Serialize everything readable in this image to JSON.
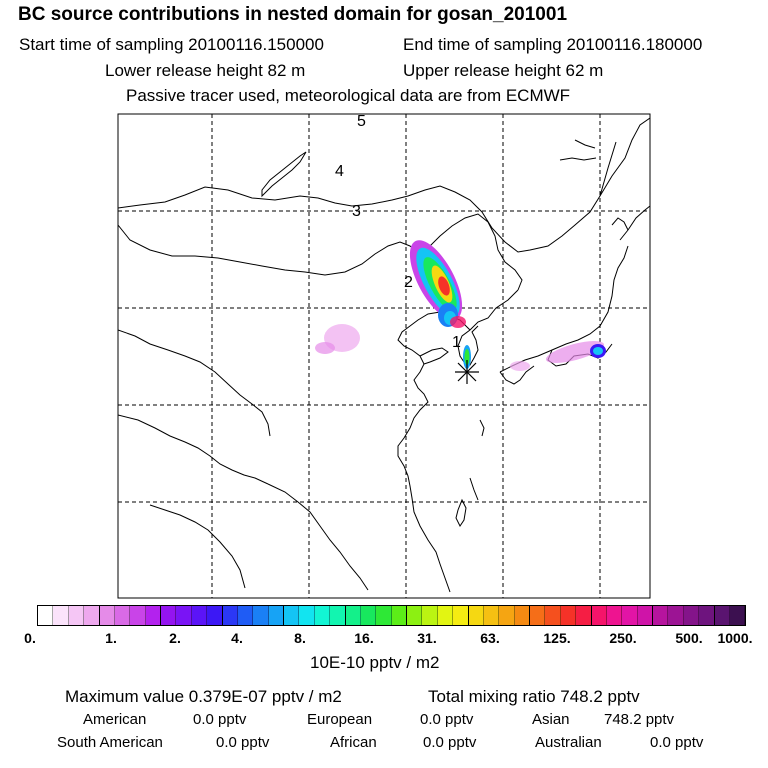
{
  "title": "BC  source contributions in nested domain for gosan_201001",
  "header": {
    "start_label": "Start time of sampling 20100116.150000",
    "end_label": "End time of sampling 20100116.180000",
    "lower_label": "Lower release height   82 m",
    "upper_label": "Upper release height   62 m",
    "info_line": "Passive tracer used, meteorological data are from ECMWF"
  },
  "map": {
    "day_markers": [
      "1",
      "2",
      "3",
      "4",
      "5"
    ],
    "receptor": "gosan"
  },
  "colorbar": {
    "labels": [
      "0.",
      "1.",
      "2.",
      "4.",
      "8.",
      "16.",
      "31.",
      "63.",
      "125.",
      "250.",
      "500.",
      "1000."
    ],
    "unit": "10E-10 pptv / m2",
    "colors": [
      "#ffffff",
      "#fbe3fb",
      "#f5c6f5",
      "#eea8ee",
      "#e58be8",
      "#d96ae6",
      "#c944e8",
      "#b322ee",
      "#9414f0",
      "#7a14f5",
      "#5b14f7",
      "#3c18f5",
      "#2b38f5",
      "#1f5cf5",
      "#1a80f5",
      "#17a3f5",
      "#14c4f5",
      "#12e4f0",
      "#12f5d4",
      "#12f5b0",
      "#14f08a",
      "#18e85e",
      "#2ee836",
      "#5ced18",
      "#8cf012",
      "#bbf412",
      "#e2f512",
      "#f5ec12",
      "#f5d812",
      "#f5c012",
      "#f5a512",
      "#f58a12",
      "#f56e18",
      "#f5501e",
      "#f53228",
      "#f51e44",
      "#f5146a",
      "#ee1490",
      "#e214a6",
      "#cf14a8",
      "#b6149e",
      "#9c1494",
      "#84148a",
      "#6e147e",
      "#5a1470",
      "#3c1050"
    ]
  },
  "stats": {
    "max_label": "Maximum value  0.379E-07 pptv / m2",
    "total_label": "Total mixing ratio      748.2 pptv",
    "regions": [
      {
        "name": "American",
        "value": "0.0 pptv"
      },
      {
        "name": "European",
        "value": "0.0 pptv"
      },
      {
        "name": "Asian",
        "value": "748.2 pptv"
      },
      {
        "name": "South American",
        "value": "0.0 pptv"
      },
      {
        "name": "African",
        "value": "0.0 pptv"
      },
      {
        "name": "Australian",
        "value": "0.0 pptv"
      }
    ]
  }
}
